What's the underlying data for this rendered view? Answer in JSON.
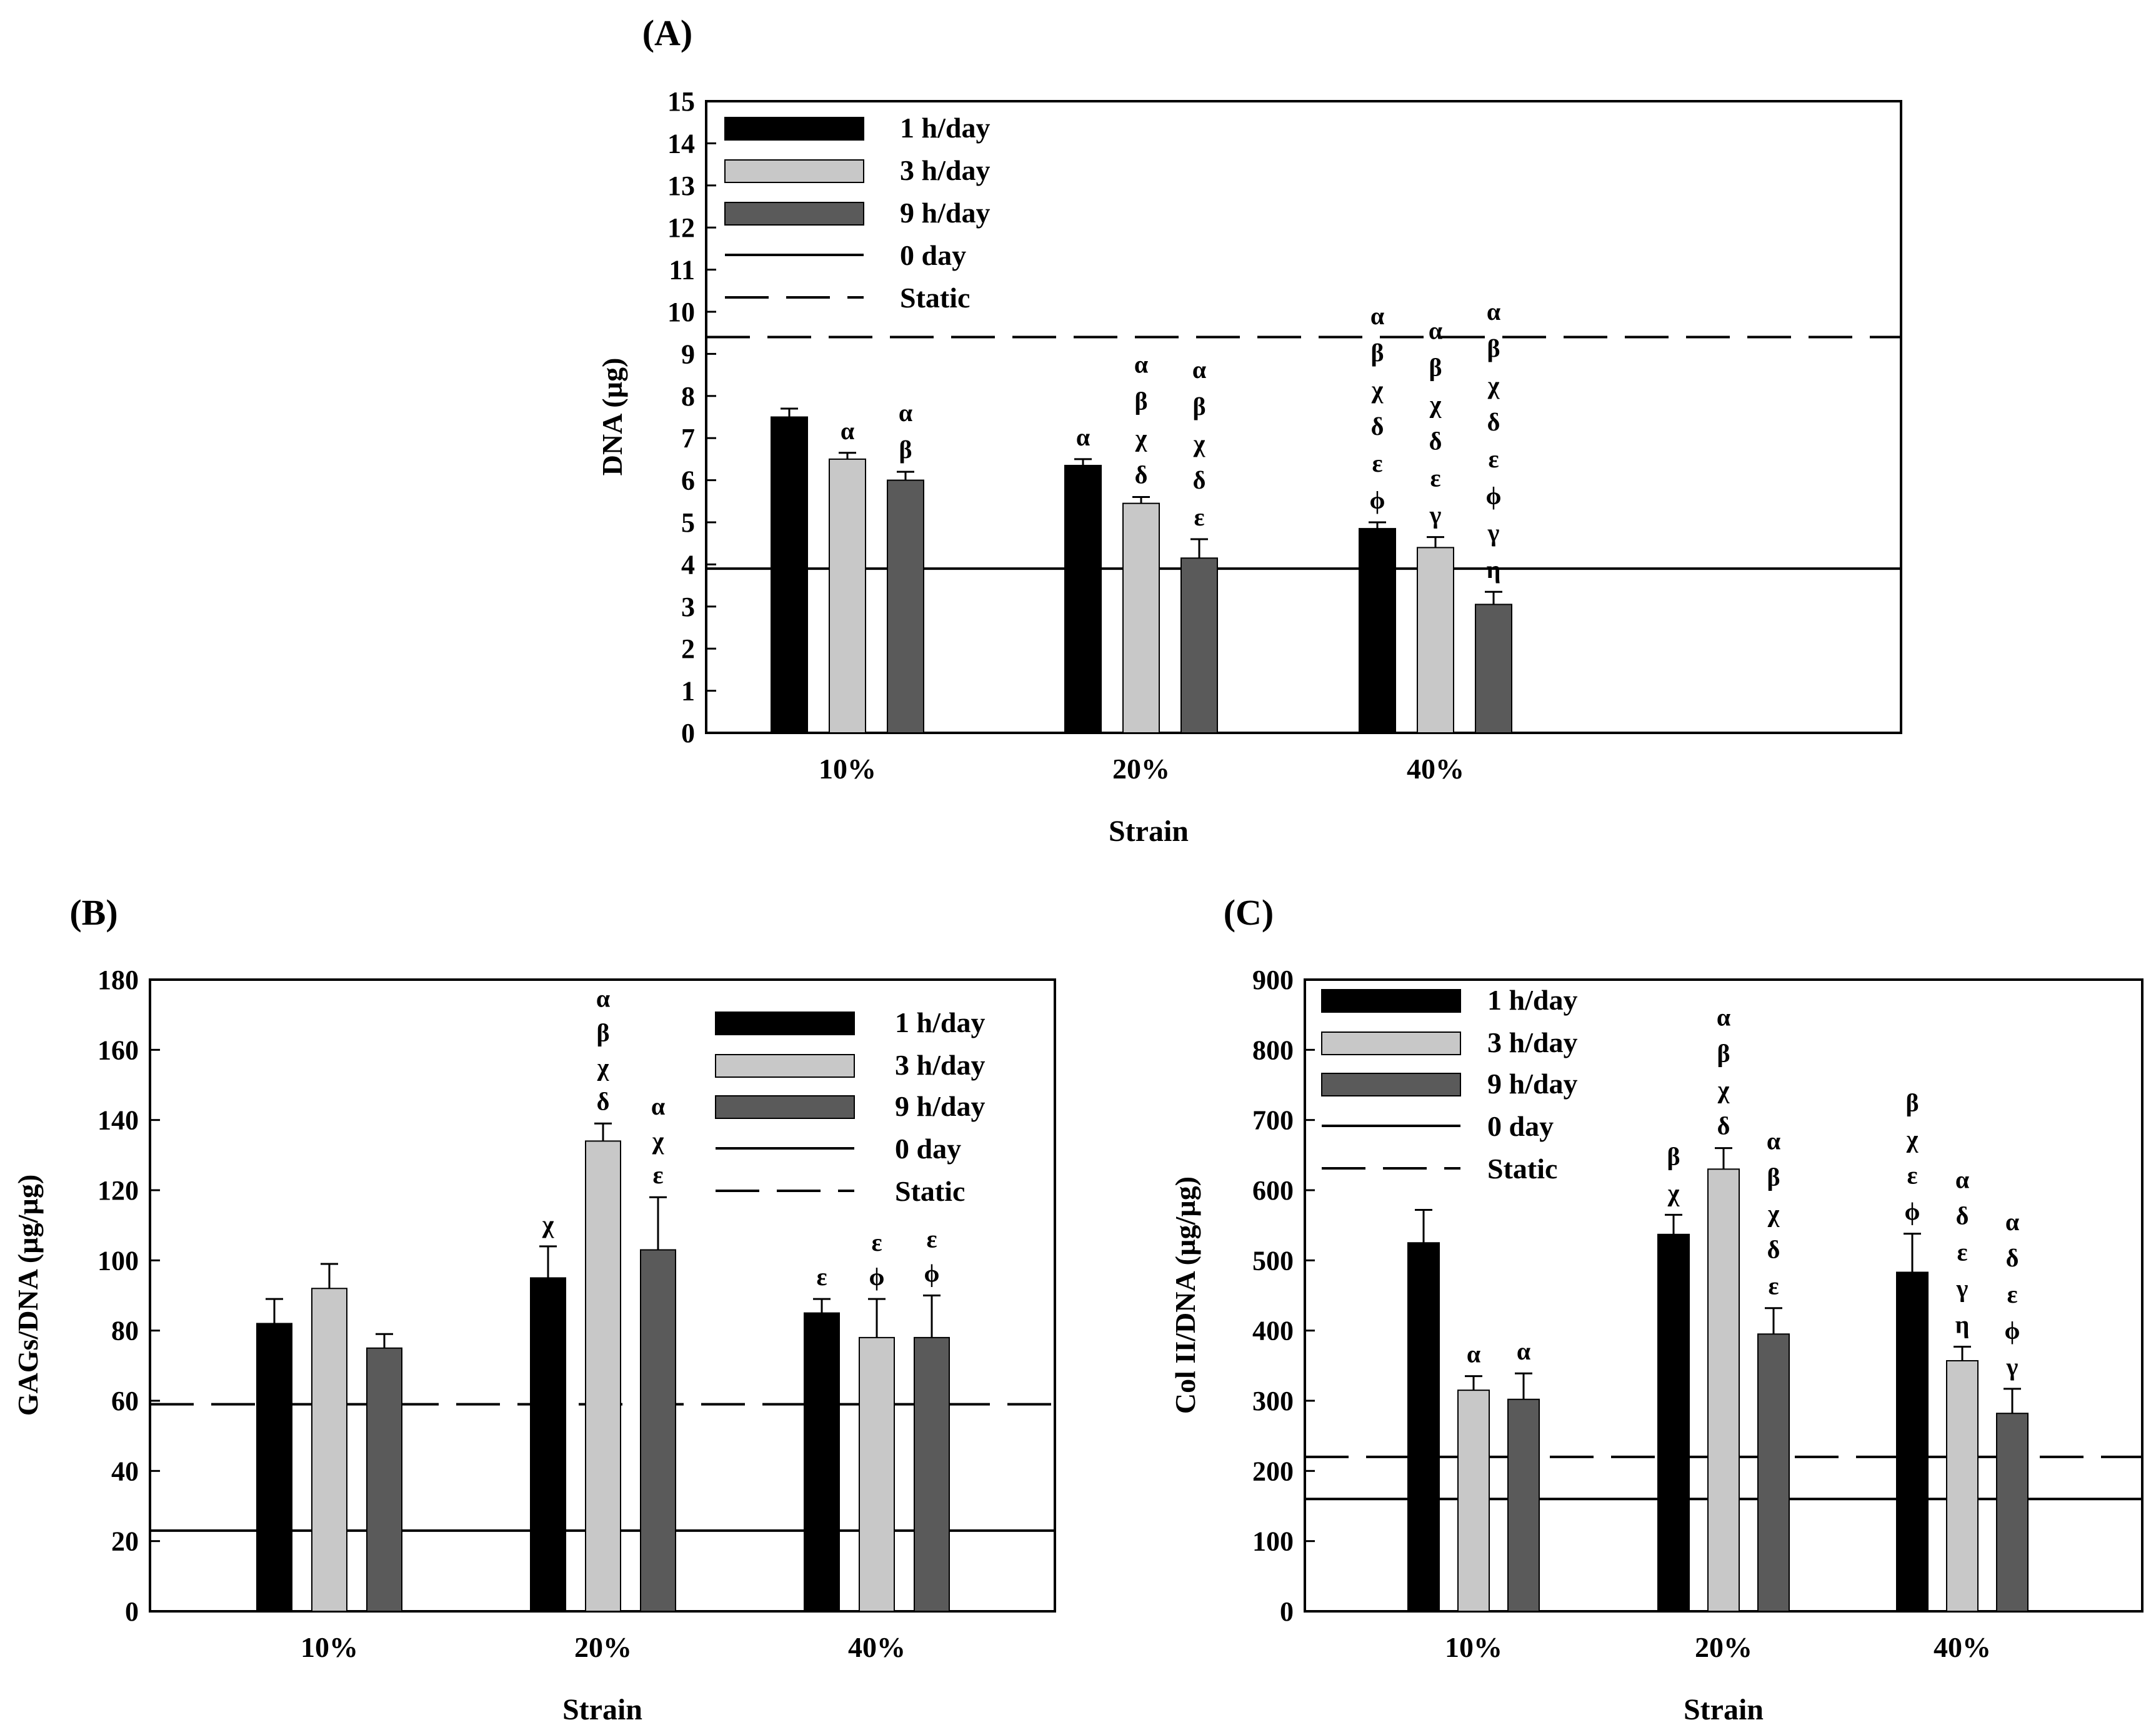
{
  "colors": {
    "series": [
      "#000000",
      "#c8c8c8",
      "#5a5a5a"
    ],
    "line": "#000000",
    "background": "#ffffff"
  },
  "chart_data": [
    {
      "panel": "(A)",
      "type": "bar",
      "title": "",
      "xlabel": "Strain",
      "ylabel": "DNA (µg)",
      "categories": [
        "10%",
        "20%",
        "40%"
      ],
      "ylim": [
        0,
        15
      ],
      "yticks": [
        "0",
        "1",
        "2",
        "3",
        "4",
        "5",
        "6",
        "7",
        "8",
        "9",
        "10",
        "11",
        "12",
        "13",
        "14",
        "15"
      ],
      "series": [
        {
          "name": "1 h/day",
          "values": [
            7.5,
            6.35,
            4.85
          ],
          "errors": [
            0.2,
            0.15,
            0.15
          ]
        },
        {
          "name": "3 h/day",
          "values": [
            6.5,
            5.45,
            4.4
          ],
          "errors": [
            0.15,
            0.15,
            0.25
          ]
        },
        {
          "name": "9 h/day",
          "values": [
            6.0,
            4.15,
            3.05
          ],
          "errors": [
            0.2,
            0.45,
            0.3
          ]
        }
      ],
      "reference_lines": [
        {
          "name": "0 day",
          "value": 3.9,
          "style": "solid"
        },
        {
          "name": "Static",
          "value": 9.4,
          "style": "dashed"
        }
      ],
      "legend": {
        "position": "top-left",
        "entries": [
          "1 h/day",
          "3 h/day",
          "9 h/day",
          "0 day",
          "Static"
        ]
      },
      "annotations": [
        [
          [],
          [
            "α"
          ],
          [
            "α",
            "β"
          ]
        ],
        [
          [
            "α"
          ],
          [
            "α",
            "β",
            "χ",
            "δ"
          ],
          [
            "α",
            "β",
            "χ",
            "δ",
            "ε"
          ]
        ],
        [
          [
            "α",
            "β",
            "χ",
            "δ",
            "ε",
            "ϕ"
          ],
          [
            "α",
            "β",
            "χ",
            "δ",
            "ε",
            "γ"
          ],
          [
            "α",
            "β",
            "χ",
            "δ",
            "ε",
            "ϕ",
            "γ",
            "η"
          ]
        ]
      ]
    },
    {
      "panel": "(B)",
      "type": "bar",
      "title": "",
      "xlabel": "Strain",
      "ylabel": "GAGs/DNA (µg/µg)",
      "categories": [
        "10%",
        "20%",
        "40%"
      ],
      "ylim": [
        0,
        180
      ],
      "yticks": [
        "0",
        "20",
        "40",
        "60",
        "80",
        "100",
        "120",
        "140",
        "160",
        "180"
      ],
      "series": [
        {
          "name": "1 h/day",
          "values": [
            82,
            95,
            85
          ],
          "errors": [
            7,
            9,
            4
          ]
        },
        {
          "name": "3 h/day",
          "values": [
            92,
            134,
            78
          ],
          "errors": [
            7,
            5,
            11
          ]
        },
        {
          "name": "9 h/day",
          "values": [
            75,
            103,
            78
          ],
          "errors": [
            4,
            15,
            12
          ]
        }
      ],
      "reference_lines": [
        {
          "name": "0 day",
          "value": 23,
          "style": "solid"
        },
        {
          "name": "Static",
          "value": 59,
          "style": "dashed"
        }
      ],
      "legend": {
        "position": "top-right",
        "entries": [
          "1 h/day",
          "3 h/day",
          "9 h/day",
          "0 day",
          "Static"
        ]
      },
      "annotations": [
        [
          [],
          [],
          []
        ],
        [
          [
            "χ"
          ],
          [
            "α",
            "β",
            "χ",
            "δ"
          ],
          [
            "α",
            "χ",
            "ε"
          ]
        ],
        [
          [
            "ε"
          ],
          [
            "ε",
            "ϕ"
          ],
          [
            "ε",
            "ϕ"
          ]
        ]
      ]
    },
    {
      "panel": "(C)",
      "type": "bar",
      "title": "",
      "xlabel": "Strain",
      "ylabel": "Col II/DNA (µg/µg)",
      "categories": [
        "10%",
        "20%",
        "40%"
      ],
      "ylim": [
        0,
        900
      ],
      "yticks": [
        "0",
        "100",
        "200",
        "300",
        "400",
        "500",
        "600",
        "700",
        "800",
        "900"
      ],
      "series": [
        {
          "name": "1 h/day",
          "values": [
            525,
            537,
            483
          ],
          "errors": [
            47,
            28,
            55
          ]
        },
        {
          "name": "3 h/day",
          "values": [
            315,
            630,
            357
          ],
          "errors": [
            20,
            30,
            20
          ]
        },
        {
          "name": "9 h/day",
          "values": [
            302,
            395,
            282
          ],
          "errors": [
            37,
            37,
            35
          ]
        }
      ],
      "reference_lines": [
        {
          "name": "0 day",
          "value": 160,
          "style": "solid"
        },
        {
          "name": "Static",
          "value": 220,
          "style": "dashed"
        }
      ],
      "legend": {
        "position": "top-left",
        "entries": [
          "1 h/day",
          "3 h/day",
          "9 h/day",
          "0 day",
          "Static"
        ]
      },
      "annotations": [
        [
          [],
          [
            "α"
          ],
          [
            "α"
          ]
        ],
        [
          [
            "β",
            "χ"
          ],
          [
            "α",
            "β",
            "χ",
            "δ"
          ],
          [
            "α",
            "β",
            "χ",
            "δ",
            "ε"
          ]
        ],
        [
          [
            "β",
            "χ",
            "ε",
            "ϕ"
          ],
          [
            "α",
            "δ",
            "ε",
            "γ",
            "η"
          ],
          [
            "α",
            "δ",
            "ε",
            "ϕ",
            "γ"
          ]
        ]
      ]
    }
  ]
}
